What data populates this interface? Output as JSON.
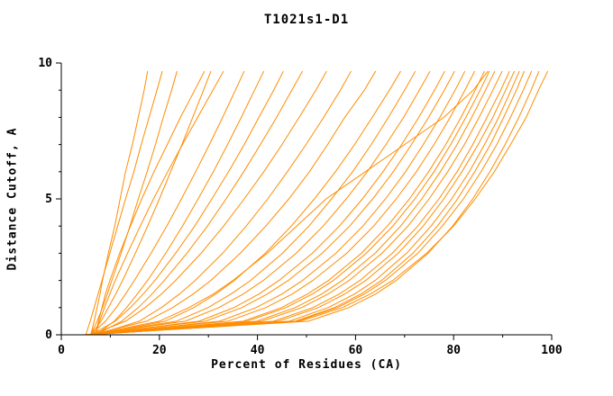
{
  "title": "T1021s1-D1",
  "chart_data": {
    "type": "line",
    "title": "T1021s1-D1",
    "xlabel": "Percent of Residues (CA)",
    "ylabel": "Distance Cutoff, A",
    "xlim": [
      0,
      100
    ],
    "ylim": [
      0,
      10
    ],
    "x_major_ticks": [
      0,
      20,
      40,
      60,
      80,
      100
    ],
    "x_minor_ticks": [
      10,
      30,
      50,
      70,
      90
    ],
    "y_major_ticks": [
      0,
      5,
      10
    ],
    "y_minor_ticks": [
      1,
      2,
      3,
      4,
      6,
      7,
      8,
      9
    ],
    "grid": false,
    "legend": "none",
    "line_color": "#ff8c00",
    "axis_color": "#000000",
    "y_levels": [
      0,
      0.5,
      1,
      1.5,
      2,
      3,
      4,
      5,
      6,
      7,
      8,
      9,
      9.7
    ],
    "series_x": [
      [
        6,
        6.7,
        7.3,
        7.9,
        8.4,
        9.6,
        10.9,
        12.0,
        13.1,
        14.5,
        15.7,
        16.9,
        17.6
      ],
      [
        5,
        5.9,
        6.7,
        7.5,
        8.3,
        9.9,
        11.5,
        13.1,
        14.8,
        16.3,
        17.9,
        19.5,
        20.6
      ],
      [
        6,
        7.3,
        8.4,
        9.4,
        10.3,
        12.2,
        14.0,
        15.7,
        17.5,
        19.2,
        20.8,
        22.5,
        23.6
      ],
      [
        7,
        7.6,
        8.3,
        9.0,
        9.9,
        11.9,
        14.1,
        16.4,
        18.9,
        21.6,
        24.3,
        27.2,
        29.2
      ],
      [
        6,
        8.1,
        9.6,
        11.1,
        12.5,
        15.1,
        17.6,
        20.0,
        22.3,
        24.6,
        26.8,
        29.0,
        30.5
      ],
      [
        7,
        7.8,
        8.8,
        9.9,
        11.0,
        13.5,
        16.1,
        18.8,
        21.7,
        24.7,
        27.8,
        30.9,
        33.1
      ],
      [
        6,
        9.0,
        11.2,
        13.1,
        14.9,
        18.3,
        21.5,
        24.5,
        27.4,
        30.2,
        32.9,
        35.5,
        37.3
      ],
      [
        7,
        10.8,
        13.3,
        15.5,
        17.6,
        21.3,
        24.7,
        27.9,
        31.0,
        33.9,
        36.7,
        39.4,
        41.3
      ],
      [
        6,
        11.0,
        14.1,
        16.7,
        19.1,
        23.3,
        27.2,
        30.7,
        34.1,
        37.3,
        40.3,
        43.3,
        45.3
      ],
      [
        7,
        12.3,
        15.7,
        18.5,
        21.0,
        25.6,
        29.8,
        33.6,
        37.2,
        40.6,
        43.9,
        47.0,
        49.2
      ],
      [
        6,
        13.1,
        17.1,
        20.4,
        23.3,
        28.5,
        33.1,
        37.3,
        41.3,
        45.0,
        48.5,
        51.9,
        54.1
      ],
      [
        7,
        15.9,
        20.4,
        24.1,
        27.3,
        32.9,
        37.7,
        42.1,
        46.1,
        49.9,
        53.5,
        56.9,
        59.1
      ],
      [
        6,
        17.4,
        22.7,
        26.9,
        30.5,
        36.5,
        41.7,
        46.4,
        50.6,
        54.3,
        57.8,
        61.8,
        64.1
      ],
      [
        7,
        21.2,
        27.0,
        31.5,
        35.3,
        41.6,
        46.9,
        51.6,
        55.9,
        59.8,
        63.4,
        66.9,
        69.2
      ],
      [
        6,
        23.5,
        29.9,
        34.6,
        38.6,
        45.1,
        50.5,
        55.1,
        59.4,
        63.2,
        66.7,
        70.0,
        72.2
      ],
      [
        5,
        25.3,
        32.1,
        37.1,
        41.2,
        47.9,
        53.4,
        58.1,
        62.4,
        66.2,
        69.8,
        73.0,
        75.2
      ],
      [
        6,
        28.1,
        35.2,
        40.3,
        44.4,
        51.2,
        56.7,
        61.4,
        65.6,
        69.4,
        72.9,
        76.1,
        78.2
      ],
      [
        5,
        29.4,
        36.8,
        42.0,
        46.3,
        53.2,
        58.8,
        63.5,
        67.7,
        71.4,
        74.9,
        78.1,
        80.2
      ],
      [
        6,
        32.3,
        39.7,
        45.0,
        49.2,
        56.0,
        61.5,
        66.1,
        70.2,
        73.8,
        77.2,
        80.3,
        82.3
      ],
      [
        5,
        34.0,
        41.7,
        47.1,
        51.3,
        58.2,
        63.7,
        68.3,
        72.4,
        76.0,
        79.3,
        82.3,
        84.3
      ],
      [
        6,
        37.1,
        44.9,
        50.2,
        54.5,
        61.2,
        66.5,
        71.0,
        74.9,
        78.4,
        81.5,
        84.4,
        86.3
      ],
      [
        5,
        37.9,
        45.8,
        51.2,
        55.5,
        62.2,
        67.6,
        72.1,
        76.0,
        79.4,
        82.5,
        85.4,
        87.3
      ],
      [
        6,
        39.9,
        47.7,
        53.1,
        57.3,
        64.0,
        69.2,
        73.5,
        77.3,
        80.7,
        83.7,
        86.5,
        88.4
      ],
      [
        5,
        40.9,
        49.0,
        54.4,
        58.7,
        65.4,
        70.7,
        75.0,
        78.8,
        82.2,
        85.2,
        88.0,
        89.9
      ],
      [
        6,
        43.3,
        51.3,
        56.7,
        60.9,
        67.5,
        72.7,
        77.0,
        80.7,
        83.9,
        86.8,
        89.6,
        91.4
      ],
      [
        5,
        44.3,
        52.4,
        57.8,
        62.1,
        68.7,
        73.8,
        78.0,
        81.7,
        85.0,
        88.0,
        90.6,
        92.4
      ],
      [
        6,
        46.5,
        54.4,
        59.8,
        64.0,
        70.4,
        75.4,
        79.6,
        83.2,
        86.3,
        89.2,
        91.7,
        93.4
      ],
      [
        5,
        47.7,
        55.7,
        61.1,
        65.3,
        71.7,
        76.7,
        80.8,
        84.3,
        87.5,
        90.2,
        92.8,
        94.4
      ],
      [
        4.5,
        48.1,
        56.3,
        61.8,
        66.1,
        72.7,
        77.7,
        82.0,
        85.6,
        88.8,
        91.6,
        94.2,
        95.9
      ],
      [
        5,
        50.4,
        58.6,
        64.1,
        68.3,
        74.8,
        79.8,
        83.9,
        87.4,
        90.5,
        93.3,
        95.8,
        97.4
      ],
      [
        5,
        48.7,
        57.3,
        63.0,
        67.6,
        74.5,
        80.0,
        84.4,
        88.3,
        91.6,
        94.8,
        97.3,
        99.2
      ],
      [
        6,
        20.0,
        26.0,
        31.0,
        35.0,
        42.0,
        48.0,
        54.0,
        62.0,
        70.0,
        78.0,
        84.0,
        87.0
      ]
    ]
  }
}
